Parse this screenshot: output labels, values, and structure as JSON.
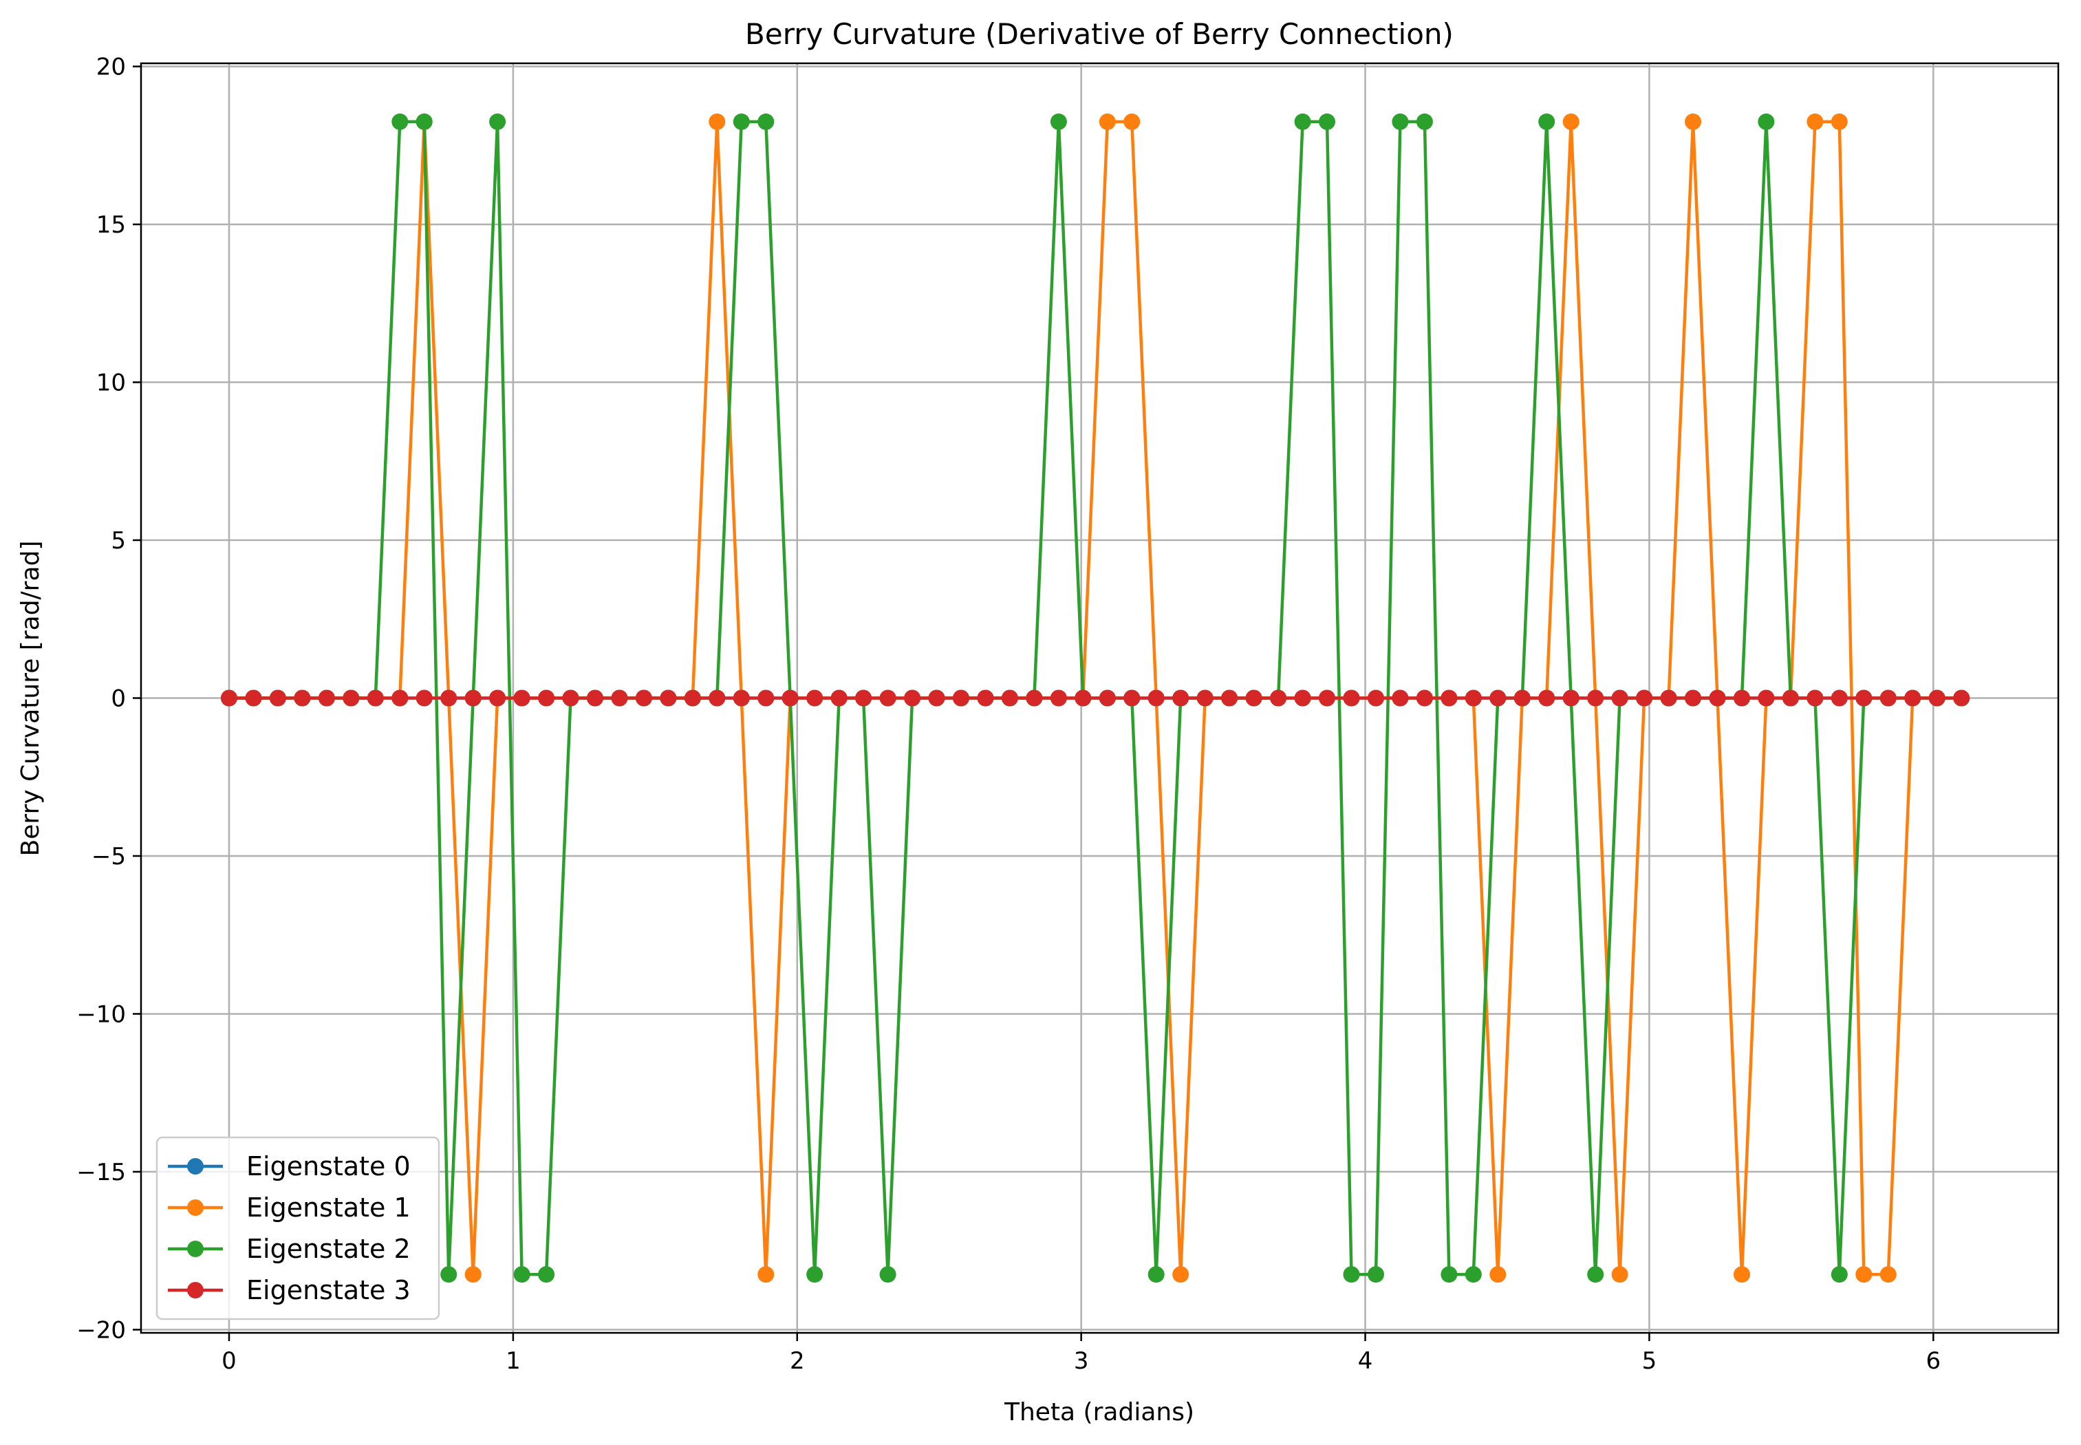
{
  "chart_data": {
    "type": "line",
    "title": "Berry Curvature (Derivative of Berry Connection)",
    "xlabel": "Theta (radians)",
    "ylabel": "Berry Curvature [rad/rad]",
    "xlim": [
      -0.31,
      6.44
    ],
    "ylim": [
      -20.1,
      20.1
    ],
    "xticks": [
      0,
      1,
      2,
      3,
      4,
      5,
      6
    ],
    "xtick_labels": [
      "0",
      "1",
      "2",
      "3",
      "4",
      "5",
      "6"
    ],
    "yticks": [
      -20,
      -15,
      -10,
      -5,
      0,
      5,
      10,
      15,
      20
    ],
    "ytick_labels": [
      "−20",
      "−15",
      "−10",
      "−5",
      "0",
      "5",
      "10",
      "15",
      "20"
    ],
    "grid": true,
    "legend_position": "lower-left",
    "x_start": 0,
    "x_step": 0.0859,
    "series": [
      {
        "name": "Eigenstate 0",
        "color": "#1f77b4",
        "values": [
          0,
          0,
          0,
          0,
          0,
          0,
          0,
          0,
          0,
          0,
          0,
          0,
          0,
          0,
          0,
          0,
          0,
          0,
          0,
          0,
          0,
          0,
          0,
          0,
          0,
          0,
          0,
          0,
          0,
          0,
          0,
          0,
          0,
          0,
          0,
          0,
          0,
          0,
          0,
          0,
          0,
          0,
          0,
          0,
          0,
          0,
          0,
          0,
          0,
          0,
          0,
          0,
          0,
          0,
          0,
          0,
          0,
          0,
          0,
          0,
          0,
          0,
          0,
          0,
          0,
          0,
          0,
          0,
          0,
          0,
          0,
          0
        ]
      },
      {
        "name": "Eigenstate 1",
        "color": "#ff7f0e",
        "values": [
          0,
          0,
          0,
          0,
          0,
          0,
          0,
          0,
          18.25,
          0,
          -18.25,
          0,
          0,
          0,
          0,
          0,
          0,
          0,
          0,
          0,
          18.25,
          0,
          -18.25,
          0,
          0,
          0,
          0,
          0,
          0,
          0,
          0,
          0,
          0,
          0,
          0,
          0,
          18.25,
          18.25,
          0,
          -18.25,
          0,
          0,
          0,
          0,
          0,
          0,
          0,
          0,
          0,
          0,
          0,
          0,
          -18.25,
          0,
          0,
          18.25,
          0,
          -18.25,
          0,
          0,
          18.25,
          0,
          -18.25,
          0,
          0,
          18.25,
          18.25,
          -18.25,
          -18.25,
          0,
          0,
          0
        ]
      },
      {
        "name": "Eigenstate 2",
        "color": "#2ca02c",
        "values": [
          0,
          0,
          0,
          0,
          0,
          0,
          0,
          18.25,
          18.25,
          -18.25,
          0,
          18.25,
          -18.25,
          -18.25,
          0,
          0,
          0,
          0,
          0,
          0,
          0,
          18.25,
          18.25,
          0,
          -18.25,
          0,
          0,
          -18.25,
          0,
          0,
          0,
          0,
          0,
          0,
          18.25,
          0,
          0,
          0,
          -18.25,
          0,
          0,
          0,
          0,
          0,
          18.25,
          18.25,
          -18.25,
          -18.25,
          18.25,
          18.25,
          -18.25,
          -18.25,
          0,
          0,
          18.25,
          0,
          -18.25,
          0,
          0,
          0,
          0,
          0,
          0,
          18.25,
          0,
          0,
          -18.25,
          0,
          0,
          0,
          0,
          0
        ]
      },
      {
        "name": "Eigenstate 3",
        "color": "#d62728",
        "values": [
          0,
          0,
          0,
          0,
          0,
          0,
          0,
          0,
          0,
          0,
          0,
          0,
          0,
          0,
          0,
          0,
          0,
          0,
          0,
          0,
          0,
          0,
          0,
          0,
          0,
          0,
          0,
          0,
          0,
          0,
          0,
          0,
          0,
          0,
          0,
          0,
          0,
          0,
          0,
          0,
          0,
          0,
          0,
          0,
          0,
          0,
          0,
          0,
          0,
          0,
          0,
          0,
          0,
          0,
          0,
          0,
          0,
          0,
          0,
          0,
          0,
          0,
          0,
          0,
          0,
          0,
          0,
          0,
          0,
          0,
          0,
          0
        ]
      }
    ]
  }
}
